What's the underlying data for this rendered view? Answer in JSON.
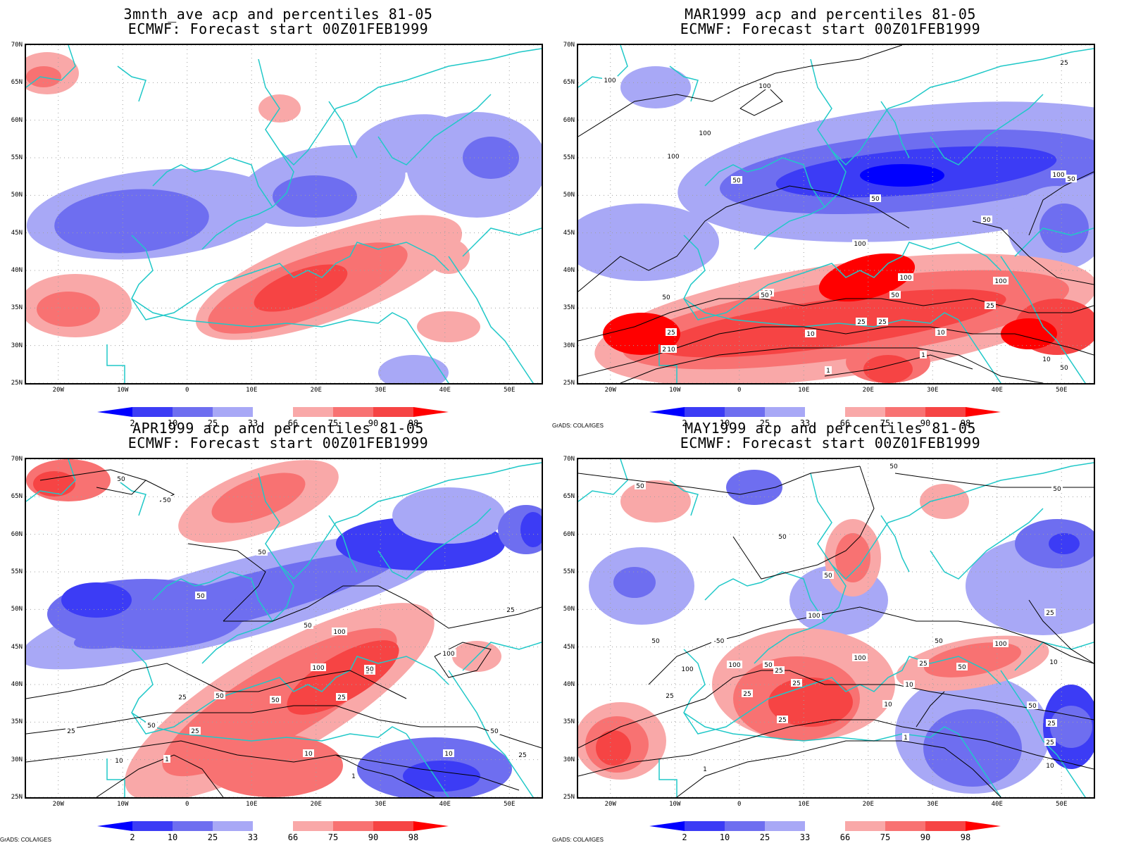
{
  "panels": [
    {
      "title1": "3mnth_ave acp and percentiles 81-05",
      "title2": "ECMWF: Forecast start 00Z01FEB1999",
      "credit": "",
      "contour_labels": []
    },
    {
      "title1": "MAR1999 acp and percentiles 81-05",
      "title2": "ECMWF: Forecast start 00Z01FEB1999",
      "credit": "GrADS: COLA/IGES",
      "contour_labels": [
        "100",
        "100",
        "100",
        "100",
        "50",
        "50",
        "25",
        "25",
        "50",
        "100",
        "50",
        "50",
        "50",
        "25",
        "10",
        "10",
        "10",
        "25",
        "100",
        "1",
        "1",
        "100",
        "100",
        "50",
        "50",
        "25",
        "10",
        "50",
        "25"
      ]
    },
    {
      "title1": "APR1999 acp and percentiles 81-05",
      "title2": "ECMWF: Forecast start 00Z01FEB1999",
      "credit": "GrADS: COLA/IGES",
      "contour_labels": [
        "50",
        "50",
        "50",
        "50",
        "50",
        "100",
        "100",
        "50",
        "50",
        "50",
        "100",
        "50",
        "25",
        "25",
        "25",
        "50",
        "25",
        "10",
        "10",
        "10",
        "1",
        "1",
        "50",
        "25",
        "25"
      ]
    },
    {
      "title1": "MAY1999 acp and percentiles 81-05",
      "title2": "ECMWF: Forecast start 00Z01FEB1999",
      "credit": "GrADS: COLA/IGES",
      "contour_labels": [
        "50",
        "50",
        "50",
        "50",
        "50",
        "100",
        "50",
        "-50",
        "100",
        "100",
        "50",
        "25",
        "25",
        "25",
        "50",
        "100",
        "25",
        "10",
        "10",
        "50",
        "1",
        "1",
        "25",
        "25",
        "25",
        "100",
        "50",
        "25",
        "10",
        "25",
        "10",
        "1"
      ]
    }
  ],
  "axes": {
    "lat_labels": [
      "70N",
      "65N",
      "60N",
      "55N",
      "50N",
      "45N",
      "40N",
      "35N",
      "30N",
      "25N"
    ],
    "lon_labels": [
      "20W",
      "10W",
      "0",
      "10E",
      "20E",
      "30E",
      "40E",
      "50E"
    ]
  },
  "colorbar": {
    "labels": [
      "2",
      "10",
      "25",
      "33",
      "66",
      "75",
      "90",
      "98"
    ],
    "colors": [
      "#0000ff",
      "#3c3cf5",
      "#6e6ef0",
      "#a8a8f6",
      "#ffffff",
      "#f9a8a8",
      "#f87272",
      "#f64444",
      "#ff0000"
    ]
  },
  "colors": {
    "coastline": "#20c8c8",
    "contour": "#000000",
    "grid": "#a0a0a0"
  },
  "chart_data": [
    {
      "type": "heatmap",
      "title": "3mnth_ave acp and percentiles 81-05",
      "subtitle": "ECMWF: Forecast start 00Z01FEB1999",
      "xlim": [
        -25,
        55
      ],
      "ylim": [
        25,
        70
      ],
      "x_ticks": [
        "20W",
        "10W",
        "0",
        "10E",
        "20E",
        "30E",
        "40E",
        "50E"
      ],
      "y_ticks": [
        "70N",
        "65N",
        "60N",
        "55N",
        "50N",
        "45N",
        "40N",
        "35N",
        "30N",
        "25N"
      ],
      "levels": [
        2,
        10,
        25,
        33,
        66,
        75,
        90,
        98
      ]
    },
    {
      "type": "heatmap",
      "title": "MAR1999 acp and percentiles 81-05",
      "subtitle": "ECMWF: Forecast start 00Z01FEB1999",
      "xlim": [
        -25,
        55
      ],
      "ylim": [
        25,
        70
      ],
      "levels": [
        2,
        10,
        25,
        33,
        66,
        75,
        90,
        98
      ]
    },
    {
      "type": "heatmap",
      "title": "APR1999 acp and percentiles 81-05",
      "subtitle": "ECMWF: Forecast start 00Z01FEB1999",
      "xlim": [
        -25,
        55
      ],
      "ylim": [
        25,
        70
      ],
      "levels": [
        2,
        10,
        25,
        33,
        66,
        75,
        90,
        98
      ]
    },
    {
      "type": "heatmap",
      "title": "MAY1999 acp and percentiles 81-05",
      "subtitle": "ECMWF: Forecast start 00Z01FEB1999",
      "xlim": [
        -25,
        55
      ],
      "ylim": [
        25,
        70
      ],
      "levels": [
        2,
        10,
        25,
        33,
        66,
        75,
        90,
        98
      ]
    }
  ]
}
